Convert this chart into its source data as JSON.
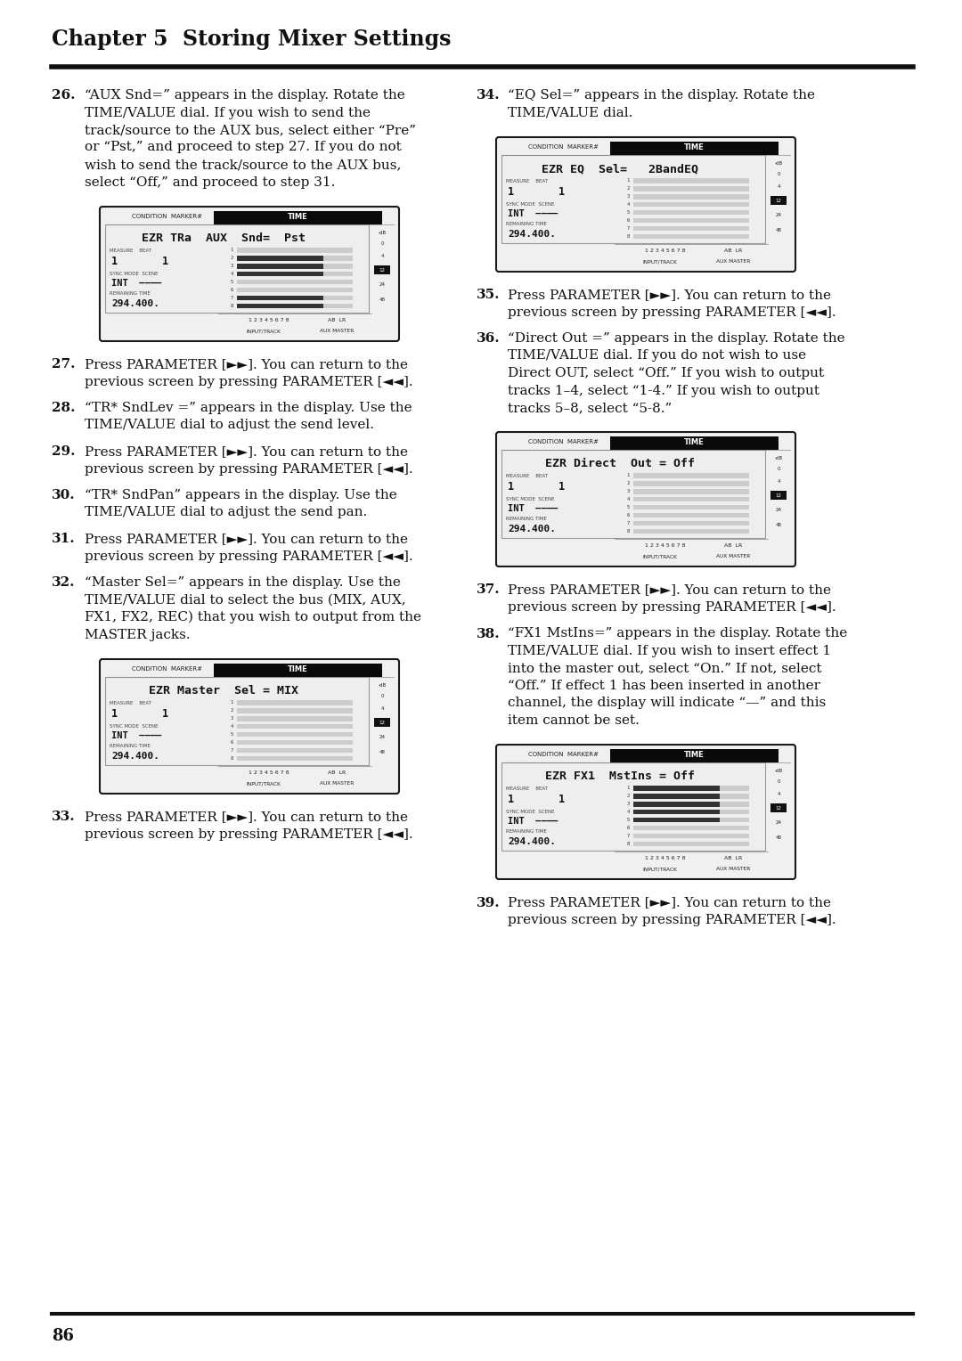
{
  "page_width": 10.8,
  "page_height": 15.28,
  "dpi": 100,
  "bg_color": "#ffffff",
  "chapter_title": "Chapter 5  Storing Mixer Settings",
  "page_number": "86",
  "col1_text_items": [
    {
      "num": "26",
      "lines": [
        "“AUX Snd=” appears in the display. Rotate the",
        "TIME/VALUE dial. If you wish to send the",
        "track/source to the AUX bus, select either “Pre”",
        "or “Pst,” and proceed to step 27. If you do not",
        "wish to send the track/source to the AUX bus,",
        "select “Off,” and proceed to step 31."
      ],
      "has_display": true,
      "display_main": "EZR TRa  AUX  Snd=  Pst",
      "display_bars": [
        0,
        1,
        1,
        1,
        0,
        0,
        1,
        1
      ]
    },
    {
      "num": "27",
      "lines": [
        "Press PARAMETER [►►]. You can return to the",
        "previous screen by pressing PARAMETER [◄◄]."
      ],
      "has_display": false
    },
    {
      "num": "28",
      "lines": [
        "“TR* SndLev =” appears in the display. Use the",
        "TIME/VALUE dial to adjust the send level."
      ],
      "has_display": false
    },
    {
      "num": "29",
      "lines": [
        "Press PARAMETER [►►]. You can return to the",
        "previous screen by pressing PARAMETER [◄◄]."
      ],
      "has_display": false
    },
    {
      "num": "30",
      "lines": [
        "“TR* SndPan” appears in the display. Use the",
        "TIME/VALUE dial to adjust the send pan."
      ],
      "has_display": false
    },
    {
      "num": "31",
      "lines": [
        "Press PARAMETER [►►]. You can return to the",
        "previous screen by pressing PARAMETER [◄◄]."
      ],
      "has_display": false
    },
    {
      "num": "32",
      "lines": [
        "“Master Sel=” appears in the display. Use the",
        "TIME/VALUE dial to select the bus (MIX, AUX,",
        "FX1, FX2, REC) that you wish to output from the",
        "MASTER jacks."
      ],
      "has_display": true,
      "display_main": "EZR Master  Sel = MIX",
      "display_bars": [
        0,
        0,
        0,
        0,
        0,
        0,
        0,
        0
      ]
    },
    {
      "num": "33",
      "lines": [
        "Press PARAMETER [►►]. You can return to the",
        "previous screen by pressing PARAMETER [◄◄]."
      ],
      "has_display": false
    }
  ],
  "col2_text_items": [
    {
      "num": "34",
      "lines": [
        "“EQ Sel=” appears in the display. Rotate the",
        "TIME/VALUE dial."
      ],
      "has_display": true,
      "display_main": "EZR EQ  Sel=   2BandEQ",
      "display_bars": [
        0,
        0,
        0,
        0,
        0,
        0,
        0,
        0
      ]
    },
    {
      "num": "35",
      "lines": [
        "Press PARAMETER [►►]. You can return to the",
        "previous screen by pressing PARAMETER [◄◄]."
      ],
      "has_display": false
    },
    {
      "num": "36",
      "lines": [
        "“Direct Out =” appears in the display. Rotate the",
        "TIME/VALUE dial. If you do not wish to use",
        "Direct OUT, select “Off.” If you wish to output",
        "tracks 1–4, select “1-4.” If you wish to output",
        "tracks 5–8, select “5-8.”"
      ],
      "has_display": true,
      "display_main": "EZR Direct  Out = Off",
      "display_bars": [
        0,
        0,
        0,
        0,
        0,
        0,
        0,
        0
      ]
    },
    {
      "num": "37",
      "lines": [
        "Press PARAMETER [►►]. You can return to the",
        "previous screen by pressing PARAMETER [◄◄]."
      ],
      "has_display": false
    },
    {
      "num": "38",
      "lines": [
        "“FX1 MstIns=” appears in the display. Rotate the",
        "TIME/VALUE dial. If you wish to insert effect 1",
        "into the master out, select “On.” If not, select",
        "“Off.” If effect 1 has been inserted in another",
        "channel, the display will indicate “—” and this",
        "item cannot be set."
      ],
      "has_display": true,
      "display_main": "EZR FX1  MstIns = Off",
      "display_bars": [
        1,
        1,
        1,
        1,
        1,
        0,
        0,
        0
      ]
    },
    {
      "num": "39",
      "lines": [
        "Press PARAMETER [►►]. You can return to the",
        "previous screen by pressing PARAMETER [◄◄]."
      ],
      "has_display": false
    }
  ]
}
